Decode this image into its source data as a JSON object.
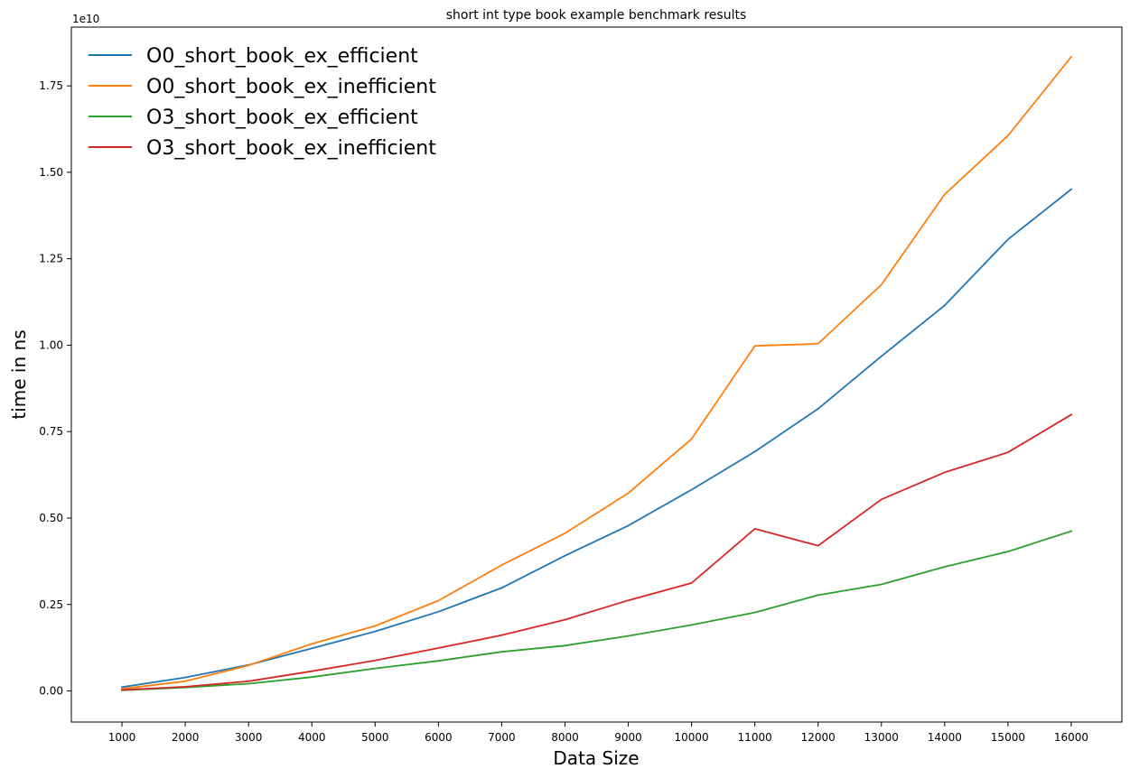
{
  "chart_data": {
    "type": "line",
    "title": "short int type book example benchmark results",
    "xlabel": "Data Size",
    "ylabel": "time in ns",
    "y_offset_label": "1e10",
    "x": [
      1000,
      2000,
      3000,
      4000,
      5000,
      6000,
      7000,
      8000,
      9000,
      10000,
      11000,
      12000,
      13000,
      14000,
      15000,
      16000
    ],
    "x_ticks": [
      "1000",
      "2000",
      "3000",
      "4000",
      "5000",
      "6000",
      "7000",
      "8000",
      "9000",
      "10000",
      "11000",
      "12000",
      "13000",
      "14000",
      "15000",
      "16000"
    ],
    "y_ticks": [
      {
        "value": 0.0,
        "label": "0.00"
      },
      {
        "value": 0.25,
        "label": "0.25"
      },
      {
        "value": 0.5,
        "label": "0.50"
      },
      {
        "value": 0.75,
        "label": "0.75"
      },
      {
        "value": 1.0,
        "label": "1.00"
      },
      {
        "value": 1.25,
        "label": "1.25"
      },
      {
        "value": 1.5,
        "label": "1.50"
      },
      {
        "value": 1.75,
        "label": "1.75"
      }
    ],
    "y_unit_multiplier": 10000000000.0,
    "xlim": [
      200,
      16800
    ],
    "ylim": [
      -0.09,
      1.92
    ],
    "grid": false,
    "legend_position": "top-left",
    "series": [
      {
        "name": "O0_short_book_ex_efficient",
        "color": "#1f77b4",
        "values": [
          0.011,
          0.039,
          0.075,
          0.123,
          0.172,
          0.229,
          0.298,
          0.391,
          0.478,
          0.582,
          0.692,
          0.816,
          0.968,
          1.115,
          1.306,
          1.451
        ]
      },
      {
        "name": "O0_short_book_ex_inefficient",
        "color": "#ff7f0e",
        "values": [
          0.006,
          0.028,
          0.074,
          0.136,
          0.188,
          0.261,
          0.364,
          0.456,
          0.572,
          0.729,
          0.998,
          1.004,
          1.175,
          1.436,
          1.606,
          1.834
        ]
      },
      {
        "name": "O3_short_book_ex_efficient",
        "color": "#2ca02c",
        "values": [
          0.002,
          0.01,
          0.021,
          0.04,
          0.065,
          0.087,
          0.113,
          0.131,
          0.159,
          0.191,
          0.227,
          0.277,
          0.308,
          0.359,
          0.403,
          0.462
        ]
      },
      {
        "name": "O3_short_book_ex_inefficient",
        "color": "#d62728",
        "values": [
          0.003,
          0.012,
          0.028,
          0.057,
          0.088,
          0.124,
          0.161,
          0.206,
          0.262,
          0.312,
          0.469,
          0.42,
          0.554,
          0.632,
          0.69,
          0.799
        ]
      }
    ]
  }
}
